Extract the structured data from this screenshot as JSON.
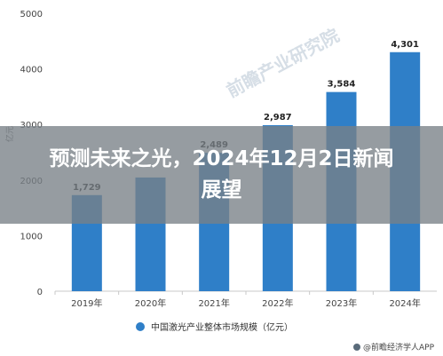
{
  "overlay": {
    "headline": "预测未来之光，2024年12月2日新闻展望"
  },
  "chart_data": {
    "type": "bar",
    "categories": [
      "2019年",
      "2020年",
      "2021年",
      "2022年",
      "2023年",
      "2024年"
    ],
    "values": [
      1729,
      2046,
      2489,
      2987,
      3584,
      4301
    ],
    "data_labels": [
      "1,729",
      "",
      "2,489",
      "2,987",
      "3,584",
      "4,301"
    ],
    "series": [
      {
        "name": "中国激光产业整体市场规模（亿元）",
        "values": [
          1729,
          2046,
          2489,
          2987,
          3584,
          4301
        ]
      }
    ],
    "ylim": [
      0,
      5000
    ],
    "yticks": [
      0,
      1000,
      2000,
      3000,
      4000,
      5000
    ],
    "ylabel": "亿元",
    "bar_color": "#2f7fc8",
    "legend_position": "bottom",
    "grid": false
  },
  "source": {
    "text": "@前瞻经济学人APP"
  },
  "watermark": {
    "text": "前瞻产业研究院"
  }
}
